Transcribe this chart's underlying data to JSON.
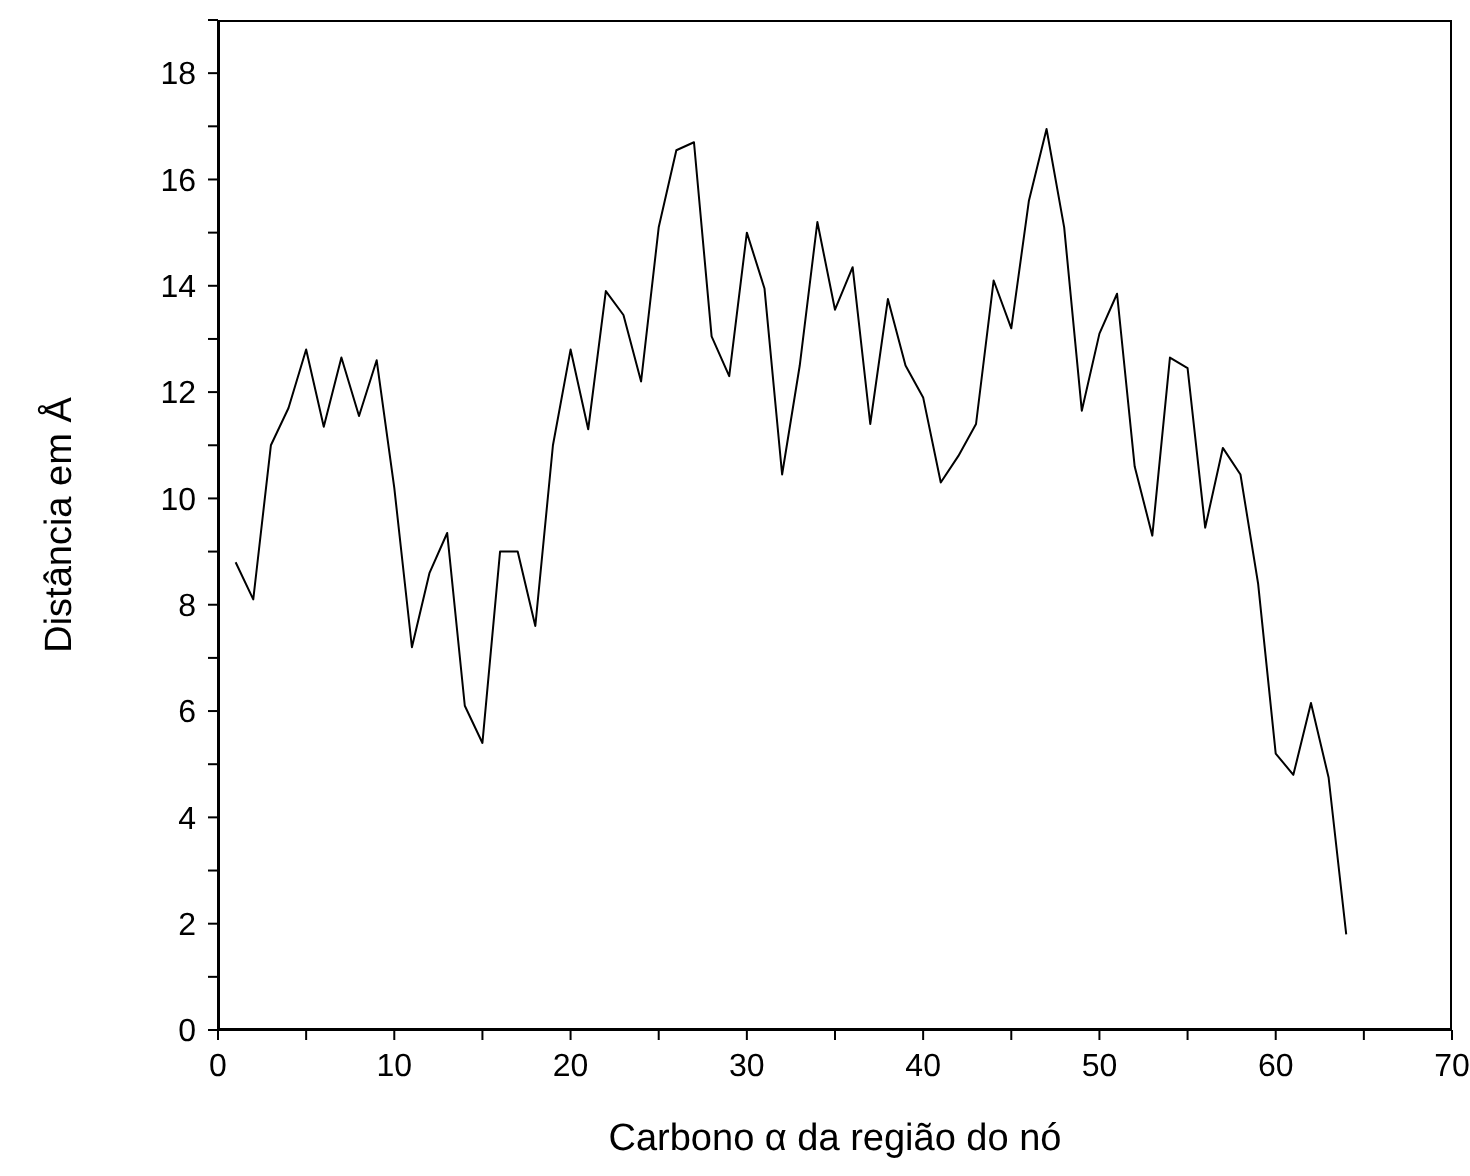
{
  "chart_data": {
    "type": "line",
    "xlabel": "Carbono α da região do nó",
    "ylabel": "Distância em Å",
    "x": [
      1,
      2,
      3,
      4,
      5,
      6,
      7,
      8,
      9,
      10,
      11,
      12,
      13,
      14,
      15,
      16,
      17,
      18,
      19,
      20,
      21,
      22,
      23,
      24,
      25,
      26,
      27,
      28,
      29,
      30,
      31,
      32,
      33,
      34,
      35,
      36,
      37,
      38,
      39,
      40,
      41,
      42,
      43,
      44,
      45,
      46,
      47,
      48,
      49,
      50,
      51,
      52,
      53,
      54,
      55,
      56,
      57,
      58,
      59,
      60,
      61,
      62,
      63,
      64
    ],
    "series": [
      {
        "color": "#000000",
        "values": [
          8.8,
          8.1,
          11.0,
          11.7,
          12.8,
          11.35,
          12.65,
          11.55,
          12.6,
          10.2,
          7.2,
          8.6,
          9.35,
          6.1,
          5.4,
          9.0,
          9.0,
          7.6,
          11.0,
          12.8,
          11.3,
          13.9,
          13.45,
          12.2,
          15.1,
          16.55,
          16.7,
          13.05,
          12.3,
          15.0,
          13.95,
          10.45,
          12.5,
          15.2,
          13.55,
          14.35,
          11.4,
          13.75,
          12.5,
          11.9,
          10.3,
          10.8,
          11.4,
          14.1,
          13.2,
          15.6,
          16.95,
          15.1,
          11.65,
          13.1,
          13.85,
          10.6,
          9.3,
          12.65,
          12.45,
          9.45,
          10.95,
          10.45,
          8.4,
          5.2,
          4.8,
          6.15,
          4.75,
          1.8
        ]
      }
    ],
    "xlim": [
      0,
      70
    ],
    "xticks": [
      0,
      {
        "value": 5,
        "label": null
      },
      10,
      {
        "value": 15,
        "label": null
      },
      20,
      {
        "value": 25,
        "label": null
      },
      30,
      {
        "value": 35,
        "label": null
      },
      40,
      {
        "value": 45,
        "label": null
      },
      50,
      {
        "value": 55,
        "label": null
      },
      60,
      {
        "value": 65,
        "label": null
      },
      70
    ],
    "ylim": [
      0,
      19
    ],
    "yticks": [
      0,
      {
        "value": 1,
        "label": null
      },
      2,
      {
        "value": 3,
        "label": null
      },
      4,
      {
        "value": 5,
        "label": null
      },
      6,
      {
        "value": 7,
        "label": null
      },
      8,
      {
        "value": 9,
        "label": null
      },
      10,
      {
        "value": 11,
        "label": null
      },
      12,
      {
        "value": 13,
        "label": null
      },
      14,
      {
        "value": 15,
        "label": null
      },
      16,
      {
        "value": 17,
        "label": null
      },
      18,
      {
        "value": 19,
        "label": null
      }
    ],
    "grid": false,
    "legend": false,
    "marker": "none",
    "line_style": "solid"
  }
}
